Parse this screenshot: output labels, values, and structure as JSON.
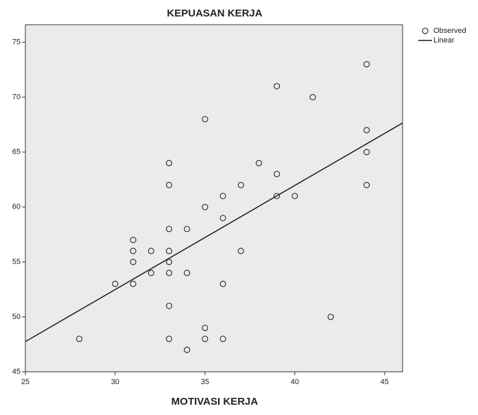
{
  "chart_data": {
    "type": "scatter",
    "title": "KEPUASAN KERJA",
    "x_label": "MOTIVASI KERJA",
    "xlim": [
      25,
      46
    ],
    "ylim": [
      45,
      76.6
    ],
    "xticks": [
      25,
      30,
      35,
      40,
      45
    ],
    "yticks": [
      45,
      50,
      55,
      60,
      65,
      70,
      75
    ],
    "legend": "top-right",
    "series": [
      {
        "name": "Observed",
        "color": "#333333",
        "mode": "markers",
        "x": [
          28,
          30,
          31,
          31,
          31,
          31,
          32,
          32,
          33,
          33,
          33,
          33,
          33,
          33,
          33,
          33,
          34,
          34,
          34,
          35,
          35,
          35,
          35,
          36,
          36,
          36,
          36,
          37,
          37,
          38,
          39,
          39,
          39,
          40,
          41,
          42,
          44,
          44,
          44,
          44
        ],
        "values": [
          48,
          53,
          53,
          55,
          56,
          57,
          56,
          54,
          64,
          62,
          58,
          56,
          55,
          54,
          51,
          48,
          58,
          54,
          47,
          68,
          60,
          49,
          48,
          61,
          59,
          53,
          48,
          62,
          56,
          64,
          71,
          63,
          61,
          61,
          70,
          50,
          73,
          67,
          65,
          62
        ]
      },
      {
        "name": "Linear",
        "color": "#1a1a1a",
        "mode": "line",
        "x": [
          25,
          46
        ],
        "values": [
          47.75,
          67.65
        ]
      }
    ]
  }
}
